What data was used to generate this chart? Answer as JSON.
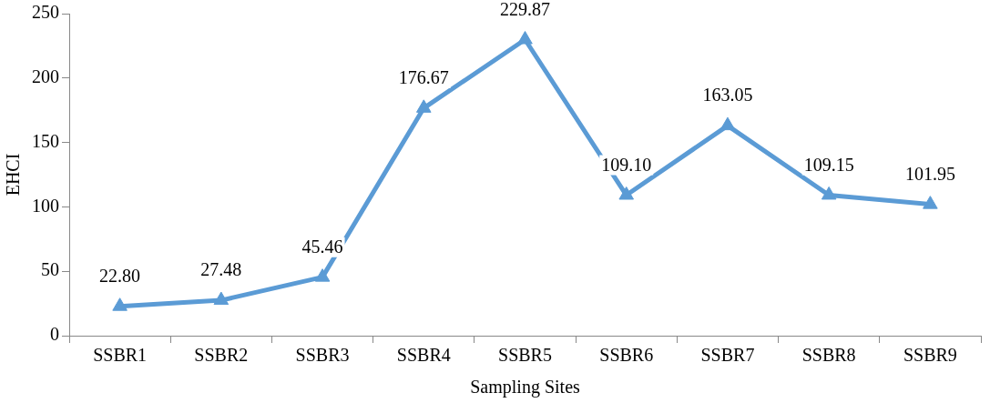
{
  "chart_data": {
    "type": "line",
    "xlabel": "Sampling Sites",
    "ylabel": "EHCI",
    "categories": [
      "SSBR1",
      "SSBR2",
      "SSBR3",
      "SSBR4",
      "SSBR5",
      "SSBR6",
      "SSBR7",
      "SSBR8",
      "SSBR9"
    ],
    "series": [
      {
        "color": "#5b9bd5",
        "values": [
          22.8,
          27.48,
          45.46,
          176.67,
          229.87,
          109.1,
          163.05,
          109.15,
          101.95
        ],
        "value_labels": [
          "22.80",
          "27.48",
          "45.46",
          "176.67",
          "229.87",
          "109.10",
          "163.05",
          "109.15",
          "101.95"
        ]
      }
    ],
    "ylim": [
      0,
      250
    ],
    "yticks": [
      0,
      50,
      100,
      150,
      200,
      250
    ],
    "grid": false,
    "legend": false,
    "marker": "triangle",
    "line_style": "solid"
  }
}
